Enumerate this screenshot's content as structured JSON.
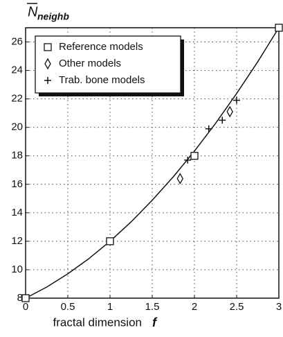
{
  "chart_data": {
    "type": "scatter",
    "ylabel": "N",
    "ylabel_sub": "neighb",
    "xlabel": "fractal dimension",
    "xlabel_symbol": "f",
    "xlim": [
      0,
      3
    ],
    "xticks": [
      0,
      0.5,
      1,
      1.5,
      2,
      2.5,
      3
    ],
    "ylim": [
      8,
      27
    ],
    "yticks": [
      8,
      10,
      12,
      14,
      16,
      18,
      20,
      22,
      24,
      26
    ],
    "grid": true,
    "legend": "upper left",
    "series": [
      {
        "name": "Reference models",
        "marker": "square",
        "color": "#111111",
        "x": [
          0,
          1,
          2,
          3
        ],
        "values": [
          8,
          12,
          18,
          27
        ]
      },
      {
        "name": "Other models",
        "marker": "diamond",
        "color": "#111111",
        "x": [
          1.83,
          2.42
        ],
        "values": [
          16.4,
          21.1
        ]
      },
      {
        "name": "Trab. bone models",
        "marker": "plus",
        "color": "#111111",
        "x": [
          1.92,
          2.17,
          2.33,
          2.5
        ],
        "values": [
          17.7,
          19.9,
          20.5,
          21.9
        ]
      }
    ],
    "curve": {
      "color": "#111111",
      "x": [
        0,
        0.25,
        0.5,
        0.75,
        1,
        1.25,
        1.5,
        1.75,
        2,
        2.25,
        2.5,
        2.75,
        3
      ],
      "values": [
        8,
        8.78,
        9.71,
        10.78,
        12,
        13.36,
        14.88,
        16.53,
        18.33,
        20.28,
        22.38,
        24.61,
        27
      ]
    }
  }
}
